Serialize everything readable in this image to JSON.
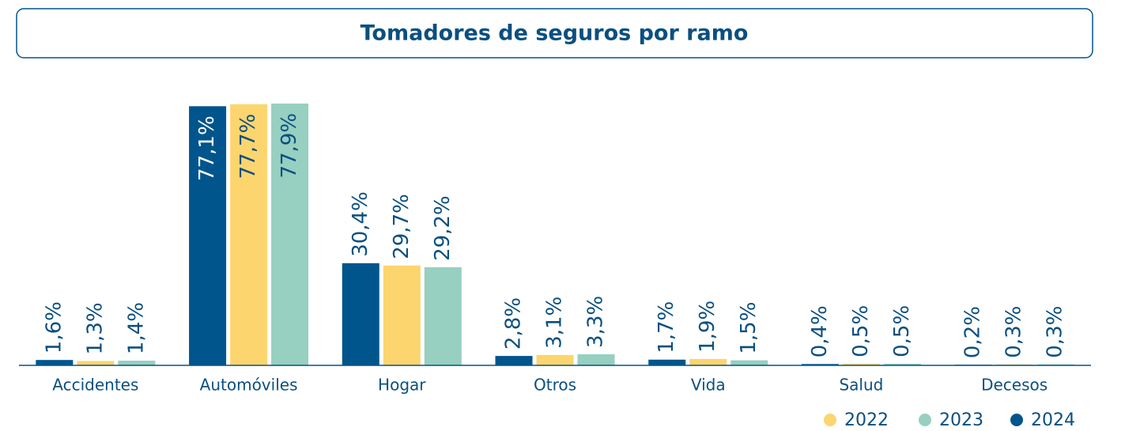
{
  "chart_data": {
    "type": "bar",
    "title": "Tomadores de seguros por ramo",
    "categories": [
      "Accidentes",
      "Automóviles",
      "Hogar",
      "Otros",
      "Vida",
      "Salud",
      "Decesos"
    ],
    "series": [
      {
        "name": "2022",
        "color": "#fdd56e",
        "values": [
          1.3,
          77.7,
          29.7,
          3.1,
          1.9,
          0.5,
          0.3
        ],
        "value_labels": [
          "1,3%",
          "77,7%",
          "29,7%",
          "3,1%",
          "1,9%",
          "0,5%",
          "0,3%"
        ]
      },
      {
        "name": "2023",
        "color": "#97cfc0",
        "values": [
          1.4,
          77.9,
          29.2,
          3.3,
          1.5,
          0.5,
          0.3
        ],
        "value_labels": [
          "1,4%",
          "77,9%",
          "29,2%",
          "3,3%",
          "1,5%",
          "0,5%",
          "0,3%"
        ]
      },
      {
        "name": "2024",
        "color": "#00558c",
        "values": [
          1.6,
          77.1,
          30.4,
          2.8,
          1.7,
          0.4,
          0.2
        ],
        "value_labels": [
          "1,6%",
          "77,1%",
          "30,4%",
          "2,8%",
          "1,7%",
          "0,4%",
          "0,2%"
        ]
      }
    ],
    "ylim": [
      0,
      80
    ]
  }
}
